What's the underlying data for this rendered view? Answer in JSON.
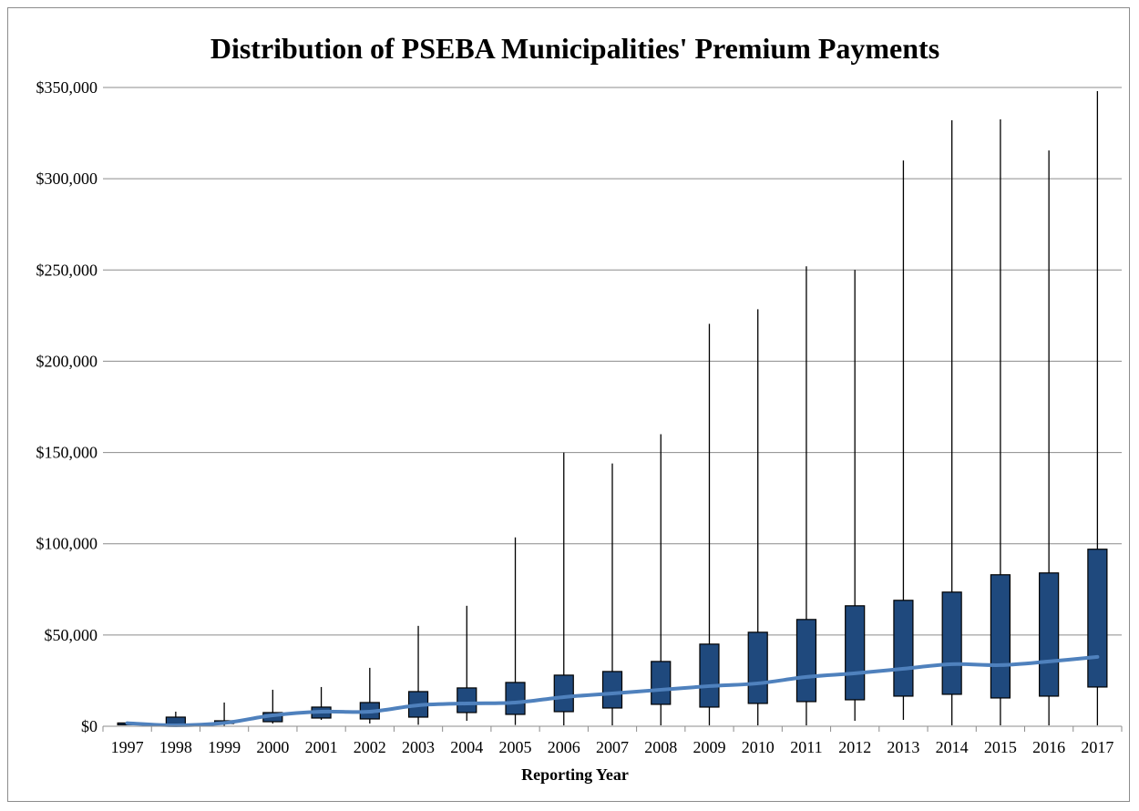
{
  "chart_data": {
    "type": "box",
    "title": "Distribution of PSEBA Municipalities' Premium Payments",
    "xlabel": "Reporting Year",
    "ylabel": "",
    "ylim": [
      0,
      350000
    ],
    "y_ticks": [
      0,
      50000,
      100000,
      150000,
      200000,
      250000,
      300000,
      350000
    ],
    "y_tick_labels": [
      "$0",
      "$50,000",
      "$100,000",
      "$150,000",
      "$200,000",
      "$250,000",
      "$300,000",
      "$350,000"
    ],
    "categories": [
      "1997",
      "1998",
      "1999",
      "2000",
      "2001",
      "2002",
      "2003",
      "2004",
      "2005",
      "2006",
      "2007",
      "2008",
      "2009",
      "2010",
      "2011",
      "2012",
      "2013",
      "2014",
      "2015",
      "2016",
      "2017"
    ],
    "series": [
      {
        "stat": "min",
        "values": [
          1200,
          200,
          300,
          1500,
          3500,
          1500,
          800,
          3000,
          700,
          500,
          500,
          500,
          500,
          500,
          500,
          3000,
          3500,
          500,
          500,
          500,
          500
        ]
      },
      {
        "stat": "q1",
        "values": [
          1400,
          1200,
          1500,
          2500,
          4500,
          4000,
          5000,
          7500,
          6500,
          8000,
          10000,
          12000,
          10500,
          12500,
          13500,
          14500,
          16500,
          17500,
          15500,
          16500,
          21500
        ]
      },
      {
        "stat": "median",
        "values": [
          1700,
          500,
          1800,
          6000,
          8000,
          8000,
          11500,
          12500,
          13000,
          16000,
          18000,
          20000,
          22000,
          23500,
          27000,
          29000,
          31500,
          34000,
          33500,
          35500,
          38000
        ]
      },
      {
        "stat": "q3",
        "values": [
          1800,
          5000,
          3000,
          7500,
          10500,
          13000,
          19000,
          21000,
          24000,
          28000,
          30000,
          35500,
          45000,
          51500,
          58500,
          66000,
          69000,
          73500,
          83000,
          84000,
          97000
        ]
      },
      {
        "stat": "max",
        "values": [
          1800,
          8000,
          13000,
          20000,
          21500,
          32000,
          55000,
          66000,
          103500,
          150000,
          144000,
          160000,
          220500,
          228500,
          252000,
          250000,
          310000,
          332000,
          332500,
          315500,
          348000
        ]
      }
    ],
    "grid": true,
    "colors": {
      "box": "#1f497d",
      "box_edge": "#000000",
      "median_line": "#4f81bd",
      "whisker": "#000000",
      "grid": "#8c8c8c"
    }
  }
}
